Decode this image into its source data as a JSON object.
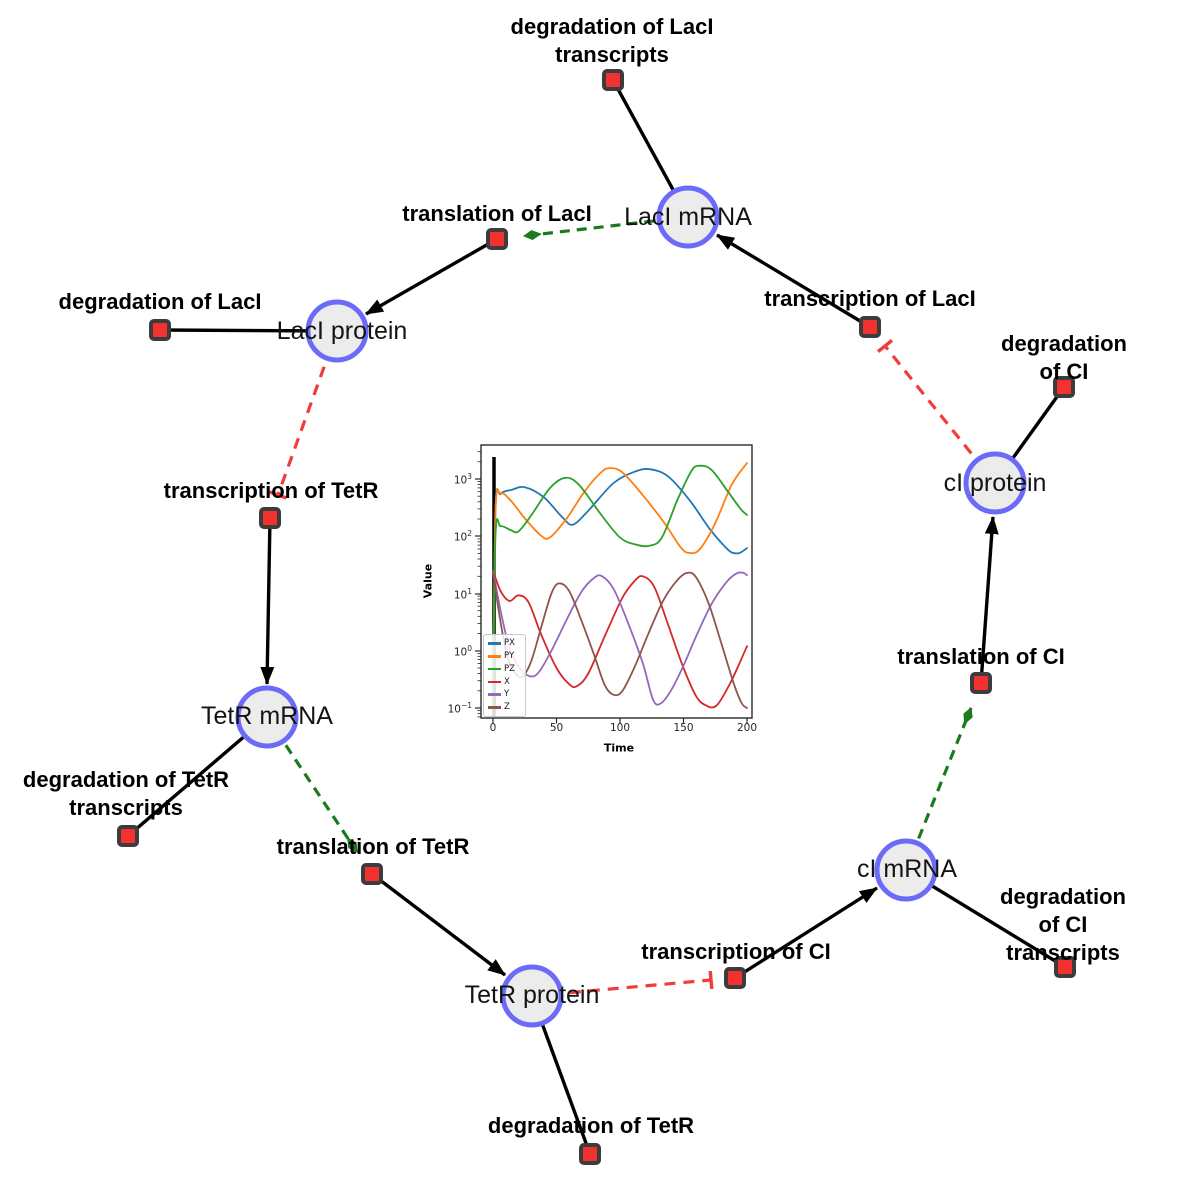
{
  "theme": {
    "circle-fill": "#ececec",
    "circle-stroke": "#6b6bf7",
    "square-fill": "#f33131",
    "square-stroke": "#3c3c3c",
    "edge-black": "#000000",
    "edge-green": "#1b7a1b",
    "edge-red": "#f23b3b"
  },
  "diagram": {
    "species": [
      {
        "label": "LacI mRNA"
      },
      {
        "label": "LacI protein"
      },
      {
        "label": "TetR mRNA"
      },
      {
        "label": "TetR protein"
      },
      {
        "label": "cI mRNA"
      },
      {
        "label": "cI protein"
      }
    ],
    "reactions": [
      {
        "label": "degradation of LacI\ntranscripts"
      },
      {
        "label": "translation of LacI"
      },
      {
        "label": "degradation of LacI"
      },
      {
        "label": "transcription of LacI"
      },
      {
        "label": "degradation of CI"
      },
      {
        "label": "transcription of TetR"
      },
      {
        "label": "degradation of TetR\ntranscripts"
      },
      {
        "label": "translation of TetR"
      },
      {
        "label": "degradation of TetR"
      },
      {
        "label": "transcription of CI"
      },
      {
        "label": "degradation of CI\ntranscripts"
      },
      {
        "label": "translation of CI"
      }
    ]
  },
  "chart_data": {
    "type": "line",
    "title": "",
    "xlabel": "Time",
    "ylabel": "Value",
    "y_scale": "log",
    "xlim": [
      -10,
      204
    ],
    "ylim_exponents": [
      -1.17,
      3.63
    ],
    "grid": false,
    "legend_position": "lower left",
    "initial_transient_line_x": 0,
    "xticks": [
      "0",
      "50",
      "100",
      "150",
      "200"
    ],
    "yticks": [
      {
        "base": "10",
        "exp": "3"
      },
      {
        "base": "10",
        "exp": "2"
      },
      {
        "base": "10",
        "exp": "1"
      },
      {
        "base": "10",
        "exp": "0"
      },
      {
        "base": "10",
        "exp": "−1"
      }
    ],
    "series": [
      {
        "name": "PX",
        "color": "#1f77b4",
        "points": [
          [
            0,
            0.1
          ],
          [
            2,
            300
          ],
          [
            6,
            550
          ],
          [
            15,
            650
          ],
          [
            25,
            720
          ],
          [
            40,
            480
          ],
          [
            55,
            210
          ],
          [
            63,
            160
          ],
          [
            75,
            280
          ],
          [
            95,
            850
          ],
          [
            112,
            1350
          ],
          [
            124,
            1480
          ],
          [
            138,
            1100
          ],
          [
            155,
            420
          ],
          [
            170,
            140
          ],
          [
            182,
            68
          ],
          [
            188,
            52
          ],
          [
            194,
            51
          ],
          [
            200,
            62
          ]
        ]
      },
      {
        "name": "PY",
        "color": "#ff7f0e",
        "points": [
          [
            0,
            0.1
          ],
          [
            2,
            280
          ],
          [
            6,
            560
          ],
          [
            14,
            420
          ],
          [
            25,
            205
          ],
          [
            38,
            102
          ],
          [
            45,
            96
          ],
          [
            58,
            205
          ],
          [
            72,
            600
          ],
          [
            85,
            1300
          ],
          [
            92,
            1550
          ],
          [
            102,
            1300
          ],
          [
            118,
            520
          ],
          [
            135,
            170
          ],
          [
            148,
            63
          ],
          [
            155,
            51
          ],
          [
            163,
            60
          ],
          [
            175,
            170
          ],
          [
            188,
            800
          ],
          [
            200,
            1900
          ]
        ]
      },
      {
        "name": "PZ",
        "color": "#2ca02c",
        "points": [
          [
            0,
            0.1
          ],
          [
            2,
            105
          ],
          [
            6,
            150
          ],
          [
            14,
            128
          ],
          [
            20,
            121
          ],
          [
            30,
            230
          ],
          [
            45,
            700
          ],
          [
            57,
            1050
          ],
          [
            68,
            780
          ],
          [
            85,
            240
          ],
          [
            100,
            95
          ],
          [
            112,
            72
          ],
          [
            123,
            68
          ],
          [
            133,
            95
          ],
          [
            145,
            420
          ],
          [
            156,
            1350
          ],
          [
            162,
            1700
          ],
          [
            172,
            1450
          ],
          [
            185,
            600
          ],
          [
            195,
            300
          ],
          [
            200,
            235
          ]
        ]
      },
      {
        "name": "X",
        "color": "#d62728",
        "points": [
          [
            0,
            25
          ],
          [
            6,
            11
          ],
          [
            13,
            7.4
          ],
          [
            20,
            9.3
          ],
          [
            28,
            7.0
          ],
          [
            38,
            1.9
          ],
          [
            50,
            0.5
          ],
          [
            60,
            0.26
          ],
          [
            66,
            0.24
          ],
          [
            75,
            0.4
          ],
          [
            88,
            1.8
          ],
          [
            102,
            8.5
          ],
          [
            112,
            17
          ],
          [
            118,
            20
          ],
          [
            127,
            13
          ],
          [
            138,
            2.8
          ],
          [
            150,
            0.5
          ],
          [
            160,
            0.16
          ],
          [
            168,
            0.11
          ],
          [
            176,
            0.11
          ],
          [
            186,
            0.25
          ],
          [
            194,
            0.6
          ],
          [
            200,
            1.2
          ]
        ]
      },
      {
        "name": "Y",
        "color": "#9467bd",
        "points": [
          [
            0,
            25
          ],
          [
            6,
            5.0
          ],
          [
            13,
            1.1
          ],
          [
            21,
            0.5
          ],
          [
            29,
            0.36
          ],
          [
            36,
            0.42
          ],
          [
            46,
            1.0
          ],
          [
            58,
            3.5
          ],
          [
            70,
            11
          ],
          [
            80,
            19
          ],
          [
            86,
            20
          ],
          [
            95,
            12
          ],
          [
            106,
            3.2
          ],
          [
            118,
            0.6
          ],
          [
            126,
            0.14
          ],
          [
            132,
            0.12
          ],
          [
            140,
            0.2
          ],
          [
            150,
            0.55
          ],
          [
            160,
            1.8
          ],
          [
            172,
            6.5
          ],
          [
            184,
            16
          ],
          [
            192,
            22.5
          ],
          [
            197,
            23
          ],
          [
            200,
            21
          ]
        ]
      },
      {
        "name": "Z",
        "color": "#8c564b",
        "points": [
          [
            0,
            25
          ],
          [
            5,
            4.2
          ],
          [
            11,
            0.85
          ],
          [
            17,
            0.42
          ],
          [
            23,
            0.35
          ],
          [
            30,
            0.65
          ],
          [
            38,
            2.6
          ],
          [
            46,
            10
          ],
          [
            52,
            15
          ],
          [
            60,
            11
          ],
          [
            70,
            3.2
          ],
          [
            80,
            0.8
          ],
          [
            88,
            0.25
          ],
          [
            95,
            0.17
          ],
          [
            102,
            0.2
          ],
          [
            112,
            0.55
          ],
          [
            122,
            1.9
          ],
          [
            134,
            7.5
          ],
          [
            145,
            17
          ],
          [
            153,
            23
          ],
          [
            160,
            19
          ],
          [
            170,
            6.5
          ],
          [
            180,
            1.3
          ],
          [
            190,
            0.25
          ],
          [
            196,
            0.12
          ],
          [
            200,
            0.1
          ]
        ]
      }
    ]
  }
}
